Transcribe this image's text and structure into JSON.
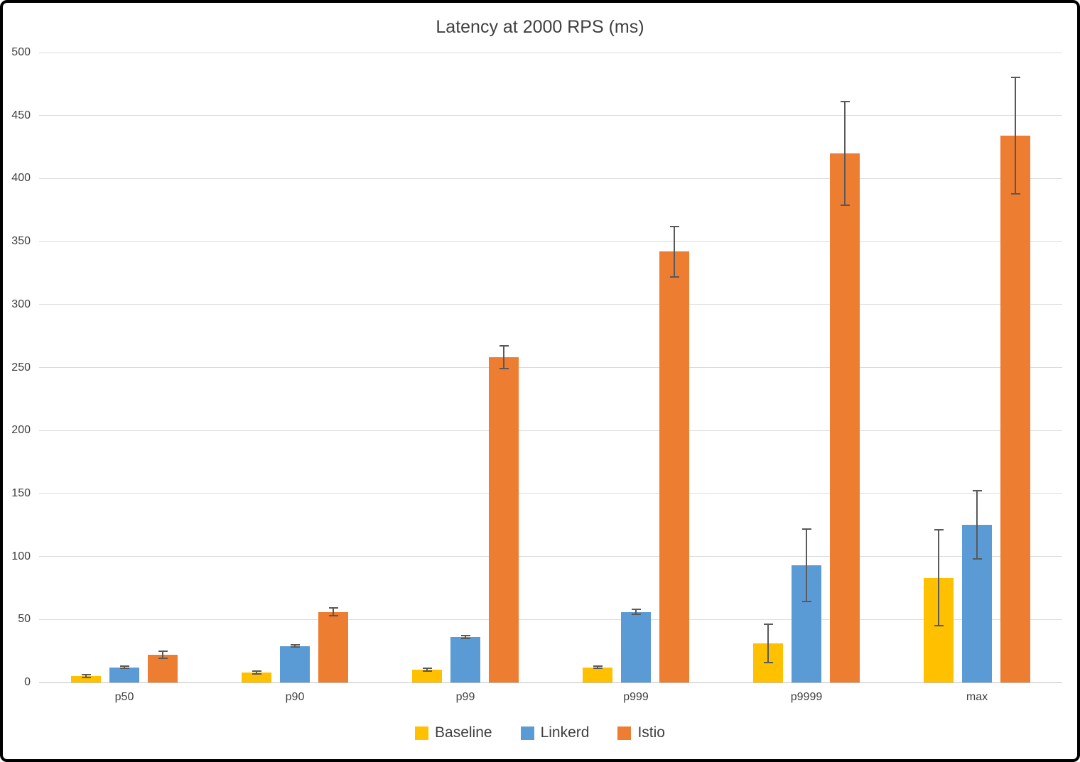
{
  "title": "Latency at 2000 RPS (ms)",
  "chart_data": {
    "type": "bar",
    "title": "Latency at 2000 RPS (ms)",
    "categories": [
      "p50",
      "p90",
      "p99",
      "p999",
      "p9999",
      "max"
    ],
    "series": [
      {
        "name": "Baseline",
        "color": "#FFC000",
        "values": [
          5,
          8,
          10,
          12,
          31,
          83
        ],
        "errors": [
          1,
          1,
          1,
          1,
          15,
          38
        ]
      },
      {
        "name": "Linkerd",
        "color": "#5B9BD5",
        "values": [
          12,
          29,
          36,
          56,
          93,
          125
        ],
        "errors": [
          1,
          1,
          1,
          2,
          29,
          27
        ]
      },
      {
        "name": "Istio",
        "color": "#ED7D31",
        "values": [
          22,
          56,
          258,
          342,
          420,
          434
        ],
        "errors": [
          3,
          3,
          9,
          20,
          41,
          46
        ]
      }
    ],
    "xlabel": "",
    "ylabel": "",
    "ylim": [
      0,
      500
    ],
    "yticks": [
      0,
      50,
      100,
      150,
      200,
      250,
      300,
      350,
      400,
      450,
      500
    ],
    "grid": true,
    "error_bars": true,
    "legend_position": "bottom"
  },
  "colors": {
    "gridline": "#dcdcdc",
    "axis_line": "#c0c0c0",
    "text": "#404040",
    "error_bar": "#595959",
    "background": "#ffffff",
    "border": "#000000"
  }
}
